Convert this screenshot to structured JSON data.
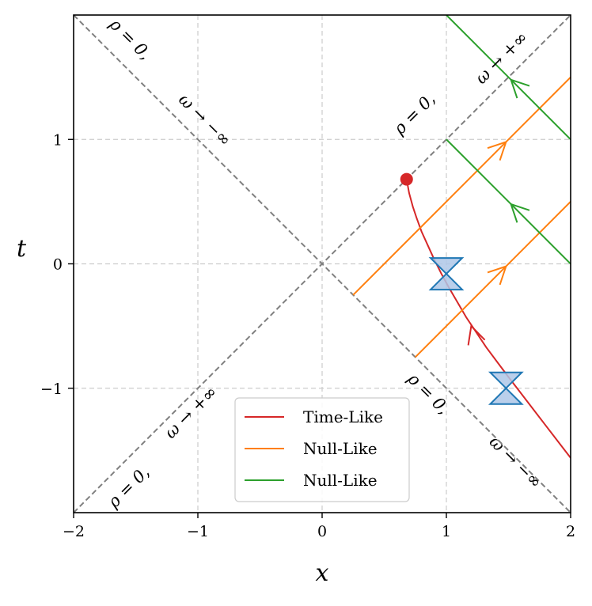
{
  "chart_data": {
    "type": "line",
    "xlabel": "x",
    "ylabel": "t",
    "xlim": [
      -2,
      2
    ],
    "ylim": [
      -2,
      2
    ],
    "xticks": [
      -2,
      -1,
      0,
      1,
      2
    ],
    "xtick_labels": [
      "−2",
      "−1",
      "0",
      "1",
      "2"
    ],
    "yticks": [
      -1,
      0,
      1
    ],
    "ytick_labels": [
      "−1",
      "0",
      "1"
    ],
    "grid": true,
    "legend_position": "lower-center",
    "colors": {
      "time_like": "#d62728",
      "null_like_orange": "#ff7f0e",
      "null_like_green": "#2ca02c",
      "boundary": "#808080",
      "cone_edge": "#1f77b4",
      "cone_fill": "#aec7e8"
    },
    "boundaries": [
      {
        "x": [
          -2,
          2
        ],
        "y": [
          -2,
          2
        ]
      },
      {
        "x": [
          -2,
          2
        ],
        "y": [
          2,
          -2
        ]
      }
    ],
    "annotations": [
      {
        "text": "ρ = 0,",
        "x": -1.55,
        "y": 1.8,
        "angle": 45
      },
      {
        "text": "ω → −∞",
        "x": -0.95,
        "y": 1.15,
        "angle": 45
      },
      {
        "text": "ρ = 0,",
        "x": 0.75,
        "y": 1.2,
        "angle": -45
      },
      {
        "text": "ω → +∞",
        "x": 1.45,
        "y": 1.65,
        "angle": -45
      },
      {
        "text": "ρ = 0,",
        "x": -1.55,
        "y": -1.8,
        "angle": -45
      },
      {
        "text": "ω → +∞",
        "x": -1.05,
        "y": -1.2,
        "angle": -45
      },
      {
        "text": "ρ = 0,",
        "x": 0.85,
        "y": -1.05,
        "angle": 45
      },
      {
        "text": "ω → −∞",
        "x": 1.55,
        "y": -1.6,
        "angle": 45
      }
    ],
    "series": [
      {
        "name": "Time-Like",
        "kind": "hyperbola",
        "a": 0.68,
        "x": [
          0.68,
          0.7,
          0.73,
          0.76,
          0.8,
          0.85,
          0.9,
          0.96,
          1.02,
          1.09,
          1.16,
          1.24,
          1.32,
          1.41,
          1.5,
          1.6,
          1.7,
          1.8,
          1.9,
          2.0
        ],
        "y": [
          0.68,
          0.57,
          0.46,
          0.37,
          0.26,
          0.15,
          0.04,
          -0.08,
          -0.19,
          -0.31,
          -0.43,
          -0.55,
          -0.67,
          -0.79,
          -0.91,
          -1.04,
          -1.17,
          -1.3,
          -1.43,
          -1.56
        ],
        "start_marker": {
          "x": 0.68,
          "y": 0.68
        },
        "arrows": [
          {
            "x": 1.2,
            "y": -0.5
          }
        ]
      },
      {
        "name": "Null-Like",
        "color_key": "null_like_orange",
        "segments": [
          {
            "x": [
              0.25,
              2.0
            ],
            "y": [
              -0.25,
              1.5
            ]
          },
          {
            "x": [
              0.75,
              2.0
            ],
            "y": [
              -0.75,
              0.5
            ]
          }
        ],
        "arrows": [
          {
            "x": 1.48,
            "y": 0.98
          },
          {
            "x": 1.48,
            "y": -0.02
          }
        ]
      },
      {
        "name": "Null-Like",
        "color_key": "null_like_green",
        "segments": [
          {
            "x": [
              2.0,
              1.0
            ],
            "y": [
              1.0,
              2.0
            ]
          },
          {
            "x": [
              2.0,
              1.0
            ],
            "y": [
              0.0,
              1.0
            ]
          }
        ],
        "arrows": [
          {
            "x": 1.52,
            "y": 1.48
          },
          {
            "x": 1.52,
            "y": 0.48
          }
        ]
      }
    ],
    "light_cones": [
      {
        "x": 1.0,
        "y": -0.08
      },
      {
        "x": 1.48,
        "y": -1.0
      }
    ]
  }
}
